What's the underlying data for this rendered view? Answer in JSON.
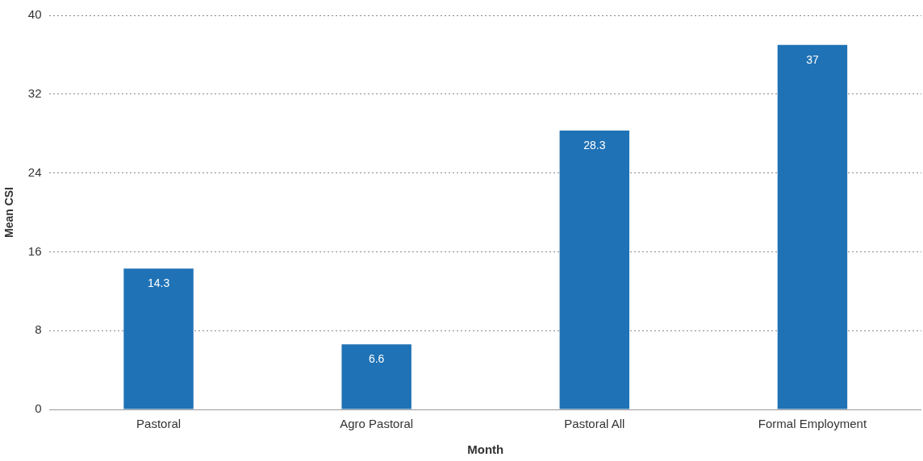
{
  "chart_data": {
    "type": "bar",
    "xlabel": "Month",
    "ylabel": "Mean CSI",
    "categories": [
      "Pastoral",
      "Agro Pastoral",
      "Pastoral All",
      "Formal Employment"
    ],
    "values": [
      14.3,
      6.6,
      28.3,
      37
    ],
    "color": "#1f72b5",
    "ylim": [
      0,
      40
    ],
    "yticks": [
      0,
      8,
      16,
      24,
      32,
      40
    ],
    "grid": "y",
    "data_labels": true
  }
}
